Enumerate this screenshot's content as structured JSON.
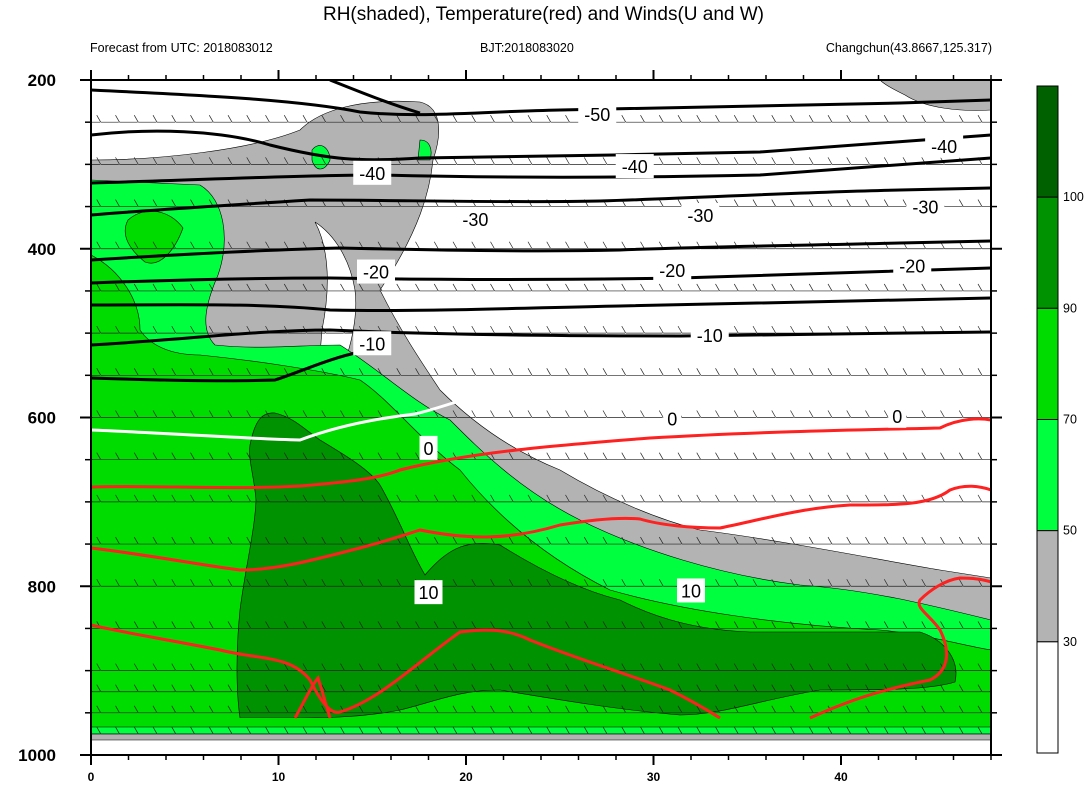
{
  "header": {
    "title": "RH(shaded), Temperature(red) and Winds(U and W)",
    "left_text": "Forecast from UTC: 2018083012",
    "center_text": "BJT:2018083020",
    "right_text": "Changchun(43.8667,125.317)"
  },
  "chart_data": {
    "type": "contour",
    "title": "RH(shaded), Temperature(red) and Winds(U and W)",
    "xlabel": "",
    "ylabel": "",
    "xlim": [
      0,
      48
    ],
    "ylim": [
      1000,
      200
    ],
    "x_ticks": [
      0,
      10,
      20,
      30,
      40
    ],
    "y_ticks": [
      200,
      400,
      600,
      800,
      1000
    ],
    "wind_levels": [
      250,
      300,
      350,
      400,
      450,
      500,
      550,
      600,
      650,
      700,
      750,
      800,
      850,
      900,
      925,
      950,
      975
    ],
    "colorbar": {
      "levels": [
        30,
        50,
        70,
        90,
        100
      ],
      "colors": [
        "#ffffff",
        "#b3b3b3",
        "#00ff3f",
        "#00db00",
        "#009200",
        "#006100"
      ]
    },
    "shading": {
      "gray": "#b3b3b3",
      "light_green": "#00ff3f",
      "green": "#00db00",
      "dark_green": "#009200",
      "darkest_green": "#006100"
    },
    "temperature_labels": [
      {
        "value": "-50",
        "x": 27,
        "p": 240
      },
      {
        "value": "-40",
        "x": 15,
        "p": 310
      },
      {
        "value": "-40",
        "x": 29,
        "p": 302
      },
      {
        "value": "-40",
        "x": 45.5,
        "p": 278
      },
      {
        "value": "-30",
        "x": 20.5,
        "p": 365
      },
      {
        "value": "-30",
        "x": 32.5,
        "p": 360
      },
      {
        "value": "-30",
        "x": 44.5,
        "p": 350
      },
      {
        "value": "-20",
        "x": 15.2,
        "p": 427
      },
      {
        "value": "-20",
        "x": 31,
        "p": 425
      },
      {
        "value": "-20",
        "x": 43.8,
        "p": 420
      },
      {
        "value": "-10",
        "x": 15,
        "p": 512
      },
      {
        "value": "-10",
        "x": 33,
        "p": 502
      },
      {
        "value": "0",
        "x": 18,
        "p": 636
      },
      {
        "value": "0",
        "x": 31,
        "p": 601
      },
      {
        "value": "0",
        "x": 43,
        "p": 598
      },
      {
        "value": "10",
        "x": 18,
        "p": 807
      },
      {
        "value": "10",
        "x": 32,
        "p": 805
      }
    ],
    "temperature_colors": {
      "below_zero": "#000000",
      "zero": "#ffffff",
      "above_zero": "#ff0000"
    }
  }
}
